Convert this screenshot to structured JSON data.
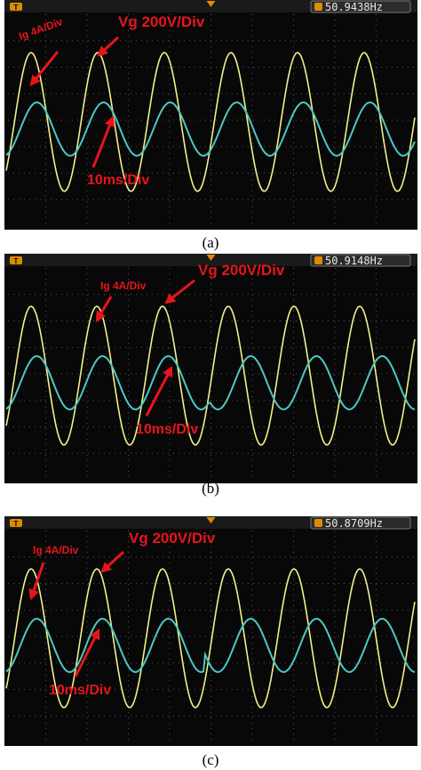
{
  "panels": [
    {
      "label": "(a)",
      "frequency": "50.9438Hz",
      "annotations": {
        "current": "Ig 4A/Div",
        "voltage": "Vg 200V/Div",
        "time": "10ms/Div"
      }
    },
    {
      "label": "(b)",
      "frequency": "50.9148Hz",
      "annotations": {
        "current": "Ig 4A/Div",
        "voltage": "Vg 200V/Div",
        "time": "10ms/Div"
      }
    },
    {
      "label": "(c)",
      "frequency": "50.8709Hz",
      "annotations": {
        "current": "Ig 4A/Div",
        "voltage": "Vg 200V/Div",
        "time": "10ms/Div"
      }
    }
  ]
}
